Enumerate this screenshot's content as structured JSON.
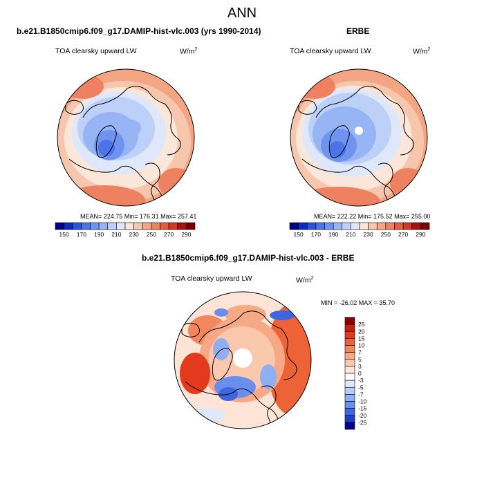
{
  "main_title": "ANN",
  "left_panel": {
    "title": "b.e21.B1850cmip6.f09_g17.DAMIP-hist-vlc.003 (yrs 1990-2014)",
    "variable": "TOA clearsky upward LW",
    "units": "W/m",
    "units_exp": "2",
    "stats": "MEAN= 224.75  Min= 176.31  Max= 257.41"
  },
  "right_panel": {
    "title": "ERBE",
    "variable": "TOA clearsky upward LW",
    "units": "W/m",
    "units_exp": "2",
    "stats": "MEAN= 222.22  Min= 175.52  Max= 255.00"
  },
  "diff_panel": {
    "title": "b.e21.B1850cmip6.f09_g17.DAMIP-hist-vlc.003 - ERBE",
    "variable": "TOA clearsky upward LW",
    "units": "W/m",
    "units_exp": "2",
    "minmax": "MIN = -26.02 MAX =  35.70"
  },
  "colorbar_abs": {
    "tick_labels": [
      "150",
      "170",
      "190",
      "210",
      "230",
      "250",
      "270",
      "290"
    ],
    "colors": [
      "#00008b",
      "#0a2cc0",
      "#2a52dd",
      "#4b74e8",
      "#6f94ef",
      "#97b4f4",
      "#bcd0f8",
      "#dfe8fb",
      "#fbe6da",
      "#f7c7ad",
      "#f3a584",
      "#ee8260",
      "#e45d40",
      "#d03724",
      "#a90f0f",
      "#7a0000"
    ]
  },
  "colorbar_diff": {
    "tick_labels": [
      "25",
      "20",
      "15",
      "10",
      "7",
      "5",
      "3",
      "0",
      "-3",
      "-5",
      "-7",
      "-10",
      "-15",
      "-20",
      "-25"
    ],
    "colors": [
      "#8b0000",
      "#c41f10",
      "#e33a1e",
      "#ee6238",
      "#f2865c",
      "#f6a984",
      "#fac8ad",
      "#fde4d6",
      "#ffffff",
      "#dde8fa",
      "#b6cdf6",
      "#8faff1",
      "#6a8eeb",
      "#3e66df",
      "#1c3ec8",
      "#000088"
    ]
  },
  "map_palette": {
    "deep_blue": "#3a63db",
    "mid_blue": "#6f94ef",
    "light_blue": "#bcd0f8",
    "pale_blue": "#dfe8fb",
    "pale_red": "#fbe6da",
    "light_red": "#f7c7ad",
    "mid_red": "#f3a584",
    "strong_red": "#ee8260"
  }
}
